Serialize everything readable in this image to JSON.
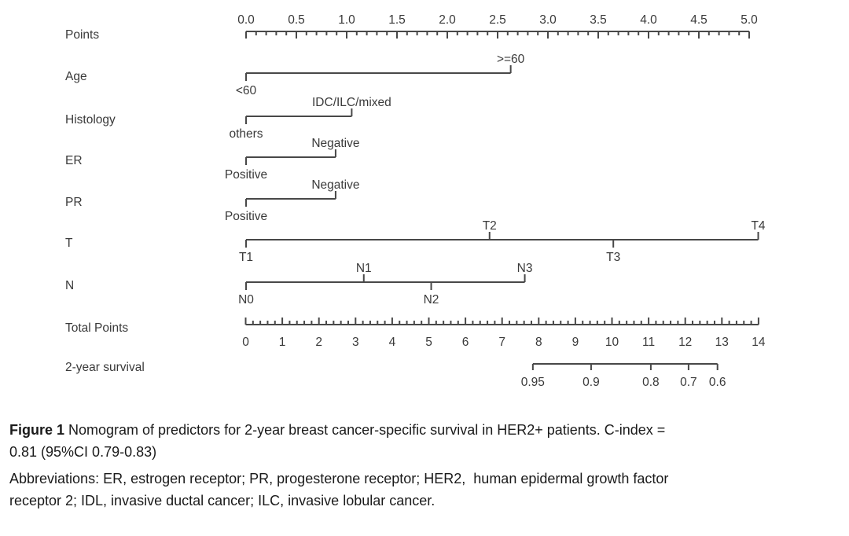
{
  "chart_data": {
    "type": "nomogram",
    "title": "Nomogram of predictors for 2-year breast cancer-specific survival in HER2+ patients",
    "points_axis": {
      "label": "Points",
      "min": 0,
      "max": 5,
      "major_step": 0.5,
      "minor_step": 0.1,
      "decimals": 1
    },
    "predictors": [
      {
        "label": "Age",
        "categories": [
          {
            "name": "<60",
            "points": 0,
            "side": "below"
          },
          {
            "name": ">=60",
            "points": 2.63,
            "side": "above"
          }
        ]
      },
      {
        "label": "Histology",
        "categories": [
          {
            "name": "others",
            "points": 0,
            "side": "below"
          },
          {
            "name": "IDC/ILC/mixed",
            "points": 1.05,
            "side": "above"
          }
        ]
      },
      {
        "label": "ER",
        "categories": [
          {
            "name": "Positive",
            "points": 0,
            "side": "below"
          },
          {
            "name": "Negative",
            "points": 0.89,
            "side": "above"
          }
        ]
      },
      {
        "label": "PR",
        "categories": [
          {
            "name": "Positive",
            "points": 0,
            "side": "below"
          },
          {
            "name": "Negative",
            "points": 0.89,
            "side": "above"
          }
        ]
      },
      {
        "label": "T",
        "categories": [
          {
            "name": "T1",
            "points": 0,
            "side": "below"
          },
          {
            "name": "T2",
            "points": 2.42,
            "side": "above"
          },
          {
            "name": "T3",
            "points": 3.65,
            "side": "below"
          },
          {
            "name": "T4",
            "points": 5.09,
            "side": "above"
          }
        ]
      },
      {
        "label": "N",
        "categories": [
          {
            "name": "N0",
            "points": 0,
            "side": "below"
          },
          {
            "name": "N1",
            "points": 1.17,
            "side": "above"
          },
          {
            "name": "N2",
            "points": 1.84,
            "side": "below"
          },
          {
            "name": "N3",
            "points": 2.77,
            "side": "above"
          }
        ]
      }
    ],
    "total_points_axis": {
      "label": "Total Points",
      "min": 0,
      "max": 14,
      "major_step": 1,
      "minor_step": 0.2,
      "decimals": 0
    },
    "survival_axis": {
      "label": "2-year survival",
      "ticks": [
        {
          "name": "0.95",
          "total_points": 7.84
        },
        {
          "name": "0.9",
          "total_points": 9.43
        },
        {
          "name": "0.8",
          "total_points": 11.06
        },
        {
          "name": "0.7",
          "total_points": 12.09
        },
        {
          "name": "0.6",
          "total_points": 12.88
        }
      ]
    },
    "layout_hints": {
      "legend": "none",
      "grid": false,
      "tick_labels_points_above": true,
      "tick_labels_total_below": true
    }
  },
  "caption": {
    "line1_bold": "Figure 1",
    "line1_rest": " Nomogram of predictors for 2-year breast cancer-specific survival in HER2+ patients. C-index =",
    "line2": "0.81 (95%CI 0.79-0.83)",
    "line3": "Abbreviations: ER, estrogen receptor; PR, progesterone receptor; HER2,  human epidermal growth factor",
    "line4": "receptor 2; IDL, invasive ductal cancer; ILC, invasive lobular cancer."
  },
  "colors": {
    "axis": "#484848",
    "text": "#3a3a3a",
    "background": "#ffffff"
  }
}
